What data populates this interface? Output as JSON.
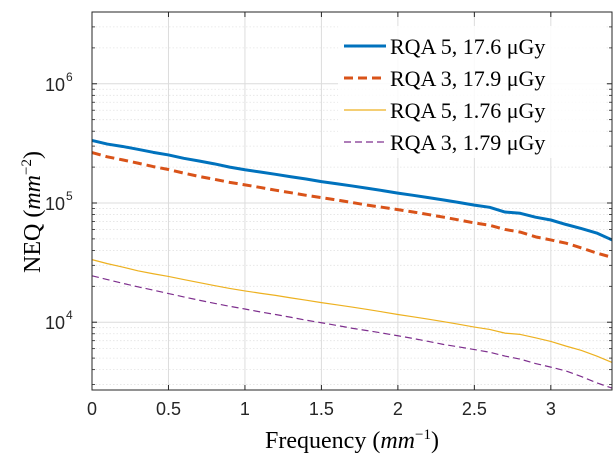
{
  "chart_data": {
    "type": "line",
    "xlabel": "Frequency (mm⁻¹)",
    "ylabel": "NEQ (mm⁻²)",
    "xlabel_parts": {
      "main": "Frequency (",
      "var": "mm",
      "sup": "−1",
      "close": ")"
    },
    "ylabel_parts": {
      "main": "NEQ (",
      "var": "mm",
      "sup": "−2",
      "close": ")"
    },
    "xlim": [
      0,
      3.4
    ],
    "ylim": [
      2700,
      4000000
    ],
    "yscale": "log",
    "grid": true,
    "legend_position": "top-right",
    "xticks": [
      0,
      0.5,
      1,
      1.5,
      2,
      2.5,
      3
    ],
    "xtick_labels": [
      "0",
      "0.5",
      "1",
      "1.5",
      "2",
      "2.5",
      "3"
    ],
    "yticks": [
      10000,
      100000,
      1000000
    ],
    "ytick_labels": [
      {
        "base": "10",
        "exp": "4"
      },
      {
        "base": "10",
        "exp": "5"
      },
      {
        "base": "10",
        "exp": "6"
      }
    ],
    "x": [
      0,
      0.1,
      0.2,
      0.3,
      0.4,
      0.5,
      0.6,
      0.7,
      0.8,
      0.9,
      1.0,
      1.1,
      1.2,
      1.3,
      1.4,
      1.5,
      1.6,
      1.7,
      1.8,
      1.9,
      2.0,
      2.1,
      2.2,
      2.3,
      2.4,
      2.5,
      2.6,
      2.7,
      2.8,
      2.9,
      3.0,
      3.1,
      3.2,
      3.3,
      3.4
    ],
    "series": [
      {
        "name": "RQA 5, 17.6 μGy",
        "color": "#0072BD",
        "dash": "solid",
        "width": "thick",
        "values": [
          335000,
          312000,
          298000,
          282000,
          266000,
          253000,
          237000,
          225000,
          213000,
          200000,
          190000,
          182000,
          174000,
          166000,
          159000,
          151000,
          145000,
          139000,
          133000,
          127000,
          121000,
          116000,
          111000,
          106000,
          101000,
          96000,
          92000,
          84000,
          82000,
          76000,
          72000,
          66000,
          61000,
          56000,
          49000
        ]
      },
      {
        "name": "RQA 3, 17.9 μGy",
        "color": "#D95319",
        "dash": "dashed",
        "width": "thick",
        "values": [
          265000,
          244000,
          230000,
          216000,
          202000,
          191000,
          178000,
          167000,
          158000,
          149000,
          142000,
          135000,
          128000,
          122000,
          116000,
          111000,
          106000,
          101000,
          96000,
          92000,
          88000,
          84000,
          80000,
          76000,
          72000,
          68000,
          65000,
          60000,
          57000,
          52000,
          49000,
          46000,
          42000,
          38000,
          35000
        ]
      },
      {
        "name": "RQA 5, 1.76 μGy",
        "color": "#EDB120",
        "dash": "solid",
        "width": "thin",
        "values": [
          33500,
          31000,
          29000,
          27000,
          25500,
          24200,
          22800,
          21500,
          20300,
          19200,
          18300,
          17500,
          16800,
          16000,
          15300,
          14600,
          14000,
          13400,
          12800,
          12200,
          11600,
          11100,
          10600,
          10100,
          9600,
          9100,
          8700,
          8100,
          7900,
          7400,
          6900,
          6300,
          5800,
          5200,
          4600
        ]
      },
      {
        "name": "RQA 3, 1.79 μGy",
        "color": "#7E2F8E",
        "dash": "dashed",
        "width": "thin",
        "values": [
          24500,
          22800,
          21200,
          19800,
          18600,
          17400,
          16300,
          15300,
          14400,
          13600,
          12900,
          12200,
          11600,
          11000,
          10400,
          9900,
          9400,
          8900,
          8500,
          8100,
          7700,
          7300,
          6900,
          6500,
          6200,
          5900,
          5600,
          5200,
          4900,
          4500,
          4200,
          3900,
          3500,
          3100,
          2800
        ]
      }
    ]
  }
}
